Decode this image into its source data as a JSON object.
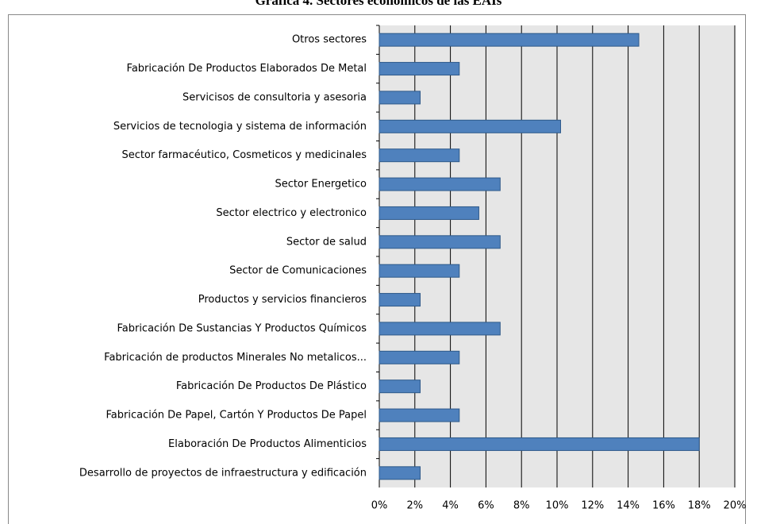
{
  "chart_data": {
    "type": "barh",
    "title": "Gráfica 4. Sectores económicos de las EAIs",
    "categories": [
      "Otros sectores",
      "Fabricación De Productos Elaborados De Metal",
      "Servicisos de consultoria y asesoria",
      "Servicios de tecnologia y sistema de información",
      "Sector farmacéutico, Cosmeticos y medicinales",
      "Sector Energetico",
      "Sector electrico y electronico",
      "Sector de salud",
      "Sector de Comunicaciones",
      "Productos y servicios financieros",
      "Fabricación De Sustancias Y Productos Químicos",
      "Fabricación de productos Minerales No metalicos...",
      "Fabricación De Productos De Plástico",
      "Fabricación De Papel, Cartón Y Productos De Papel",
      "Elaboración De Productos Alimenticios",
      "Desarrollo de proyectos de infraestructura y edificación"
    ],
    "values": [
      14.6,
      4.5,
      2.3,
      10.2,
      4.5,
      6.8,
      5.6,
      6.8,
      4.5,
      2.3,
      6.8,
      4.5,
      2.3,
      4.5,
      18.0,
      2.3
    ],
    "color": "#4f81bd",
    "xlim": [
      0,
      20
    ],
    "xticks": [
      {
        "value": 0,
        "label": "0%"
      },
      {
        "value": 2,
        "label": "2%"
      },
      {
        "value": 4,
        "label": "4%"
      },
      {
        "value": 6,
        "label": "6%"
      },
      {
        "value": 8,
        "label": "8%"
      },
      {
        "value": 10,
        "label": "10%"
      },
      {
        "value": 12,
        "label": "12%"
      },
      {
        "value": 14,
        "label": "14%"
      },
      {
        "value": 16,
        "label": "16%"
      },
      {
        "value": 18,
        "label": "18%"
      },
      {
        "value": 20,
        "label": "20%"
      }
    ],
    "grid": true
  }
}
